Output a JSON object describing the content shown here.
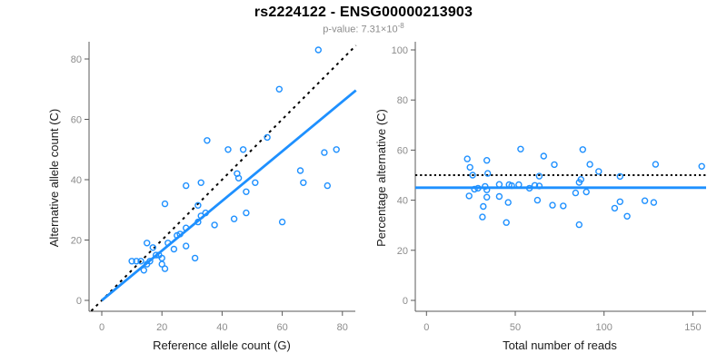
{
  "figure": {
    "title": "rs2224122 - ENSG00000213903",
    "pvalue_label": "p-value: 7.31×10",
    "pvalue_exponent": "-8"
  },
  "colors": {
    "accent_blue": "#1E90FF",
    "reference_line_black": "#000000",
    "tick_label_gray": "#8C8C8C",
    "axis_gray": "#595959"
  },
  "chart_data": [
    {
      "id": "allele-count-scatter",
      "type": "scatter",
      "xlabel": "Reference allele count (G)",
      "ylabel": "Alternative allele count (C)",
      "xlim": [
        0,
        80
      ],
      "ylim": [
        0,
        80
      ],
      "x_ticks": [
        0,
        20,
        40,
        60,
        80
      ],
      "y_ticks": [
        0,
        20,
        40,
        60,
        80
      ],
      "grid": false,
      "point_color": "#1E90FF",
      "points": [
        [
          10,
          13
        ],
        [
          11.5,
          13
        ],
        [
          13,
          13
        ],
        [
          14,
          10
        ],
        [
          15,
          12
        ],
        [
          15,
          19
        ],
        [
          16,
          13
        ],
        [
          17,
          17.5
        ],
        [
          18,
          15
        ],
        [
          19,
          15
        ],
        [
          20,
          14
        ],
        [
          20,
          12
        ],
        [
          21,
          10.5
        ],
        [
          21,
          32
        ],
        [
          22,
          19
        ],
        [
          24,
          17
        ],
        [
          25,
          21.5
        ],
        [
          26,
          22
        ],
        [
          28,
          18
        ],
        [
          28,
          24
        ],
        [
          28,
          38
        ],
        [
          31,
          14
        ],
        [
          32,
          26
        ],
        [
          32,
          31.5
        ],
        [
          33,
          28
        ],
        [
          33,
          39
        ],
        [
          34.5,
          29
        ],
        [
          35,
          53
        ],
        [
          37.5,
          25
        ],
        [
          42,
          50
        ],
        [
          44,
          27
        ],
        [
          45,
          42
        ],
        [
          45.5,
          40.5
        ],
        [
          47,
          50
        ],
        [
          48,
          29
        ],
        [
          48,
          36
        ],
        [
          51,
          39
        ],
        [
          55,
          54
        ],
        [
          59,
          70
        ],
        [
          60,
          26
        ],
        [
          66,
          43
        ],
        [
          67,
          39
        ],
        [
          72,
          83
        ],
        [
          74,
          49
        ],
        [
          75,
          38
        ],
        [
          78,
          50
        ]
      ],
      "lines": [
        {
          "name": "identity-line",
          "style": "dashed",
          "color": "#000000",
          "x1": -3.5,
          "y1": -3.5,
          "x2": 84.5,
          "y2": 84.5
        },
        {
          "name": "fit-line",
          "style": "solid",
          "color": "#1E90FF",
          "x1": 0,
          "y1": 0,
          "x2": 84.5,
          "y2": 69.6
        }
      ]
    },
    {
      "id": "percentage-scatter",
      "type": "scatter",
      "xlabel": "Total number of reads",
      "ylabel": "Percentage alternative (C)",
      "xlim": [
        0,
        150
      ],
      "ylim": [
        0,
        100
      ],
      "x_ticks": [
        0,
        50,
        100,
        150
      ],
      "y_ticks": [
        0,
        20,
        40,
        60,
        80,
        100
      ],
      "grid": false,
      "point_color": "#1E90FF",
      "points": [
        [
          23,
          56.5
        ],
        [
          24.5,
          53.1
        ],
        [
          26,
          50
        ],
        [
          24,
          41.7
        ],
        [
          27,
          44.4
        ],
        [
          34,
          55.9
        ],
        [
          29,
          44.8
        ],
        [
          34.5,
          50.7
        ],
        [
          33,
          45.5
        ],
        [
          34,
          44.1
        ],
        [
          34,
          41.2
        ],
        [
          32,
          37.5
        ],
        [
          31.5,
          33.3
        ],
        [
          53,
          60.4
        ],
        [
          41,
          46.3
        ],
        [
          41,
          41.5
        ],
        [
          46.5,
          46.2
        ],
        [
          48,
          45.8
        ],
        [
          46,
          39.1
        ],
        [
          52,
          46.2
        ],
        [
          66,
          57.6
        ],
        [
          45,
          31.1
        ],
        [
          58,
          44.8
        ],
        [
          63.5,
          49.6
        ],
        [
          61,
          45.9
        ],
        [
          72,
          54.2
        ],
        [
          63.5,
          45.7
        ],
        [
          88,
          60.2
        ],
        [
          62.5,
          40
        ],
        [
          92,
          54.3
        ],
        [
          71,
          38
        ],
        [
          87,
          48.3
        ],
        [
          86,
          47.1
        ],
        [
          97,
          51.5
        ],
        [
          77,
          37.7
        ],
        [
          84,
          42.9
        ],
        [
          90,
          43.3
        ],
        [
          109,
          49.5
        ],
        [
          129,
          54.3
        ],
        [
          86,
          30.2
        ],
        [
          109,
          39.4
        ],
        [
          106,
          36.8
        ],
        [
          155,
          53.5
        ],
        [
          123,
          39.8
        ],
        [
          113,
          33.6
        ],
        [
          128,
          39.1
        ]
      ],
      "lines": [
        {
          "name": "null-line",
          "style": "dotted",
          "color": "#000000",
          "y": 50
        },
        {
          "name": "mean-line",
          "style": "solid",
          "color": "#1E90FF",
          "y": 45
        }
      ]
    }
  ]
}
